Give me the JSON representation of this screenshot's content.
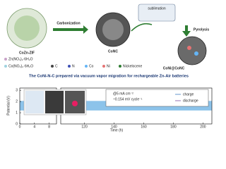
{
  "scheme": {
    "steps": {
      "carbonization": "Carbonization",
      "sublimation": "sublimation",
      "pyrolysis": "Pyrolysis"
    },
    "materials": [
      "CoZn-ZIF",
      "CoNC",
      "CoNi@CoNC"
    ],
    "legend": [
      "Zn(NO₃)₂·6H₂O",
      "Co(NO₃)₂·6H₂O",
      "C",
      "N",
      "Co",
      "Ni",
      "Nickelocene"
    ]
  },
  "banner": "The CoNi-N-C prepared via vacuum vapor migration for rechargeable Zn-Air batteries",
  "chart": {
    "y_label": "Potential (V)",
    "x_label": "Time (h)",
    "ylim": [
      0,
      3.2
    ],
    "yticks": [
      0,
      1,
      2,
      3
    ],
    "xlim_left": [
      0,
      10
    ],
    "xticks_left": [
      0,
      4,
      8
    ],
    "xlim_right": [
      104,
      206
    ],
    "xticks_right": [
      120,
      140,
      160,
      180,
      200
    ],
    "inset": {
      "condition": "@5 mA cm⁻²",
      "decay": "~0.154 mV cycle⁻¹",
      "legend": [
        "charge",
        "discharge"
      ]
    },
    "charge_potential": 2.05,
    "discharge_potential": 1.2,
    "band_color": "#8cc3ea"
  }
}
